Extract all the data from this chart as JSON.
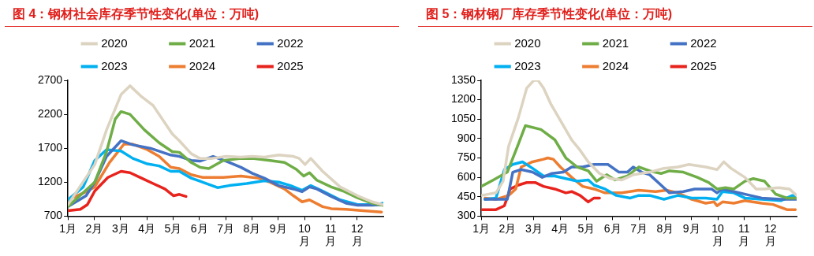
{
  "chart_data": [
    {
      "type": "line",
      "title": "图 4：钢材社会库存季节性变化(单位：万吨)",
      "xlim": [
        1,
        13
      ],
      "xticks": [
        {
          "value": 1,
          "label": "1月"
        },
        {
          "value": 2,
          "label": "2月"
        },
        {
          "value": 3,
          "label": "3月"
        },
        {
          "value": 4,
          "label": "4月"
        },
        {
          "value": 5,
          "label": "5月"
        },
        {
          "value": 6,
          "label": "6月"
        },
        {
          "value": 7,
          "label": "7月"
        },
        {
          "value": 8,
          "label": "8月"
        },
        {
          "value": 9,
          "label": "9月"
        },
        {
          "value": 10,
          "label": "10月"
        },
        {
          "value": 11,
          "label": "11月"
        },
        {
          "value": 12,
          "label": "12月"
        }
      ],
      "ylim": [
        700,
        2700
      ],
      "yticks": [
        700,
        1200,
        1700,
        2200,
        2700
      ],
      "grid": false,
      "legend": "top",
      "marker": "none",
      "line_style": "solid",
      "series": [
        {
          "name": "2020",
          "color": "#dcd3c0",
          "x": [
            1,
            2.02,
            2.47,
            3.02,
            3.36,
            3.8,
            4.24,
            4.97,
            5.24,
            5.69,
            6.02,
            6.47,
            7.02,
            7.58,
            8.02,
            8.47,
            9.02,
            9.58,
            9.8,
            10.02,
            10.24,
            10.69,
            11.36,
            12.02,
            12.58,
            12.97
          ],
          "values": [
            870,
            1460,
            1970,
            2490,
            2620,
            2460,
            2330,
            1910,
            1810,
            1620,
            1550,
            1550,
            1580,
            1570,
            1580,
            1570,
            1600,
            1580,
            1550,
            1460,
            1550,
            1360,
            1130,
            1000,
            910,
            870
          ]
        },
        {
          "name": "2021",
          "color": "#6fad47",
          "x": [
            1,
            2.02,
            2.47,
            2.8,
            3.02,
            3.36,
            3.91,
            4.47,
            4.97,
            5.24,
            5.69,
            6.02,
            6.36,
            6.91,
            7.58,
            8.02,
            8.69,
            9.24,
            9.69,
            9.97,
            10.19,
            10.47,
            11.02,
            11.47,
            12.02,
            12.58,
            12.97
          ],
          "values": [
            840,
            1200,
            1650,
            2130,
            2240,
            2200,
            1970,
            1780,
            1650,
            1640,
            1490,
            1420,
            1400,
            1520,
            1550,
            1550,
            1520,
            1490,
            1390,
            1290,
            1340,
            1230,
            1130,
            1070,
            970,
            890,
            860
          ]
        },
        {
          "name": "2022",
          "color": "#4472c4",
          "x": [
            1,
            1.69,
            2.02,
            2.47,
            3.02,
            3.47,
            4.13,
            4.91,
            5.24,
            5.69,
            6.02,
            6.52,
            7.02,
            7.58,
            8.02,
            8.47,
            9.02,
            9.58,
            9.91,
            10.19,
            10.47,
            11.02,
            11.58,
            12.02,
            12.58,
            12.97
          ],
          "values": [
            840,
            1000,
            1200,
            1580,
            1810,
            1750,
            1700,
            1600,
            1580,
            1520,
            1510,
            1580,
            1510,
            1420,
            1330,
            1260,
            1150,
            1100,
            1060,
            1130,
            1100,
            990,
            890,
            860,
            860,
            870
          ]
        },
        {
          "name": "2023",
          "color": "#00b0f0",
          "x": [
            1,
            1.58,
            2.02,
            2.47,
            3.02,
            3.47,
            4.02,
            4.47,
            4.91,
            5.24,
            5.69,
            6.13,
            6.69,
            7.13,
            7.8,
            8.47,
            9.02,
            9.47,
            9.91,
            10.24,
            10.69,
            11.36,
            12.02,
            12.69,
            13
          ],
          "values": [
            940,
            1130,
            1520,
            1680,
            1660,
            1550,
            1470,
            1440,
            1360,
            1360,
            1260,
            1200,
            1120,
            1150,
            1180,
            1220,
            1200,
            1150,
            1080,
            1150,
            1070,
            940,
            870,
            870,
            890
          ]
        },
        {
          "name": "2024",
          "color": "#ed7d31",
          "x": [
            1,
            1.58,
            2.02,
            2.58,
            3.13,
            3.47,
            4.02,
            4.47,
            4.91,
            5.24,
            5.69,
            6.13,
            6.91,
            7.58,
            8.24,
            8.69,
            9.24,
            9.58,
            9.91,
            10.19,
            10.69,
            11.02,
            11.58,
            12.24,
            12.93
          ],
          "values": [
            940,
            1040,
            1130,
            1490,
            1760,
            1760,
            1680,
            1580,
            1420,
            1400,
            1310,
            1270,
            1270,
            1290,
            1260,
            1200,
            1100,
            1000,
            910,
            940,
            840,
            810,
            800,
            780,
            760
          ]
        },
        {
          "name": "2025",
          "color": "#e8231d",
          "x": [
            1,
            1.47,
            1.74,
            2.02,
            2.52,
            3.02,
            3.36,
            3.8,
            4.24,
            4.69,
            5.02,
            5.24,
            5.49
          ],
          "values": [
            780,
            800,
            870,
            1070,
            1270,
            1360,
            1340,
            1260,
            1180,
            1100,
            1000,
            1020,
            990
          ]
        }
      ]
    },
    {
      "type": "line",
      "title": "图 5：钢材钢厂库存季节性变化(单位：万吨)",
      "xlim": [
        1,
        13
      ],
      "xticks": [
        {
          "value": 1,
          "label": "1月"
        },
        {
          "value": 2,
          "label": "2月"
        },
        {
          "value": 3,
          "label": "3月"
        },
        {
          "value": 4,
          "label": "4月"
        },
        {
          "value": 5,
          "label": "5月"
        },
        {
          "value": 6,
          "label": "6月"
        },
        {
          "value": 7,
          "label": "7月"
        },
        {
          "value": 8,
          "label": "8月"
        },
        {
          "value": 9,
          "label": "9月"
        },
        {
          "value": 10,
          "label": "10月"
        },
        {
          "value": 11,
          "label": "11月"
        },
        {
          "value": 12,
          "label": "12月"
        }
      ],
      "ylim": [
        300,
        1350
      ],
      "yticks": [
        300,
        450,
        600,
        750,
        900,
        1050,
        1200,
        1350
      ],
      "grid": false,
      "legend": "top",
      "marker": "none",
      "line_style": "solid",
      "series": [
        {
          "name": "2020",
          "color": "#dcd3c0",
          "x": [
            1,
            1.56,
            1.83,
            2.04,
            2.41,
            2.73,
            3,
            3.16,
            3.37,
            3.64,
            4.01,
            4.44,
            4.76,
            5.07,
            5.5,
            5.93,
            6.35,
            6.78,
            7.41,
            7.95,
            8.48,
            8.9,
            9.54,
            9.97,
            10.23,
            10.5,
            11.03,
            11.46,
            11.78,
            12.31,
            12.73,
            13
          ],
          "values": [
            460,
            480,
            570,
            840,
            1060,
            1290,
            1350,
            1350,
            1290,
            1170,
            1040,
            890,
            810,
            720,
            630,
            590,
            580,
            620,
            640,
            670,
            680,
            700,
            680,
            660,
            720,
            670,
            600,
            510,
            510,
            520,
            510,
            460
          ]
        },
        {
          "name": "2021",
          "color": "#6fad47",
          "x": [
            1,
            1.46,
            1.99,
            2.36,
            2.68,
            3.27,
            3.8,
            4.22,
            4.65,
            5.07,
            5.39,
            5.77,
            6.09,
            6.56,
            6.99,
            7.41,
            7.84,
            8.16,
            8.69,
            9.22,
            9.65,
            9.97,
            10.29,
            10.61,
            11.03,
            11.35,
            11.78,
            12.2,
            12.63,
            13
          ],
          "values": [
            530,
            580,
            640,
            830,
            1000,
            970,
            890,
            750,
            680,
            650,
            570,
            620,
            580,
            610,
            680,
            650,
            630,
            650,
            640,
            600,
            560,
            510,
            520,
            510,
            570,
            590,
            570,
            470,
            440,
            440
          ]
        },
        {
          "name": "2022",
          "color": "#4472c4",
          "x": [
            1.14,
            1.67,
            1.99,
            2.2,
            2.52,
            2.95,
            3.32,
            3.69,
            4.12,
            4.44,
            4.86,
            5.29,
            5.82,
            6.24,
            6.56,
            6.78,
            7.1,
            7.41,
            7.84,
            8.16,
            8.69,
            9.12,
            9.76,
            9.97,
            10.18,
            10.61,
            11.24,
            11.67,
            12.41,
            13
          ],
          "values": [
            430,
            430,
            430,
            640,
            660,
            640,
            600,
            630,
            640,
            680,
            680,
            700,
            700,
            640,
            640,
            680,
            640,
            620,
            540,
            480,
            490,
            510,
            510,
            480,
            510,
            490,
            460,
            440,
            430,
            430
          ]
        },
        {
          "name": "2023",
          "color": "#00b0f0",
          "x": [
            1.14,
            1.56,
            1.88,
            2.2,
            2.57,
            2.95,
            3.37,
            3.8,
            4.22,
            4.65,
            5.07,
            5.29,
            5.71,
            6.14,
            6.67,
            6.99,
            7.41,
            7.95,
            8.48,
            9.01,
            9.54,
            9.97,
            10.18,
            10.61,
            11.03,
            11.67,
            12.41,
            12.84,
            13
          ],
          "values": [
            430,
            440,
            660,
            700,
            720,
            670,
            610,
            610,
            590,
            570,
            580,
            540,
            510,
            460,
            440,
            460,
            460,
            430,
            460,
            440,
            440,
            430,
            490,
            480,
            440,
            430,
            420,
            460,
            450
          ]
        },
        {
          "name": "2024",
          "color": "#ed7d31",
          "x": [
            1.14,
            1.56,
            2.04,
            2.31,
            2.52,
            2.95,
            3.37,
            3.53,
            3.74,
            4.01,
            4.44,
            4.86,
            5.29,
            5.71,
            6.35,
            6.99,
            7.63,
            8.05,
            8.48,
            9.01,
            9.54,
            9.86,
            9.97,
            10.18,
            10.61,
            11.03,
            11.67,
            12.1,
            12.63,
            12.95
          ],
          "values": [
            440,
            430,
            460,
            510,
            680,
            720,
            740,
            750,
            740,
            680,
            600,
            530,
            510,
            480,
            480,
            500,
            490,
            500,
            480,
            430,
            400,
            410,
            380,
            410,
            400,
            420,
            400,
            390,
            350,
            350
          ]
        },
        {
          "name": "2025",
          "color": "#e8231d",
          "x": [
            1.03,
            1.56,
            1.88,
            2.1,
            2.41,
            2.73,
            3.05,
            3.37,
            3.8,
            4.22,
            4.44,
            4.76,
            5.07,
            5.29,
            5.5
          ],
          "values": [
            350,
            350,
            380,
            510,
            540,
            560,
            560,
            530,
            510,
            480,
            490,
            460,
            410,
            440,
            440
          ]
        }
      ]
    }
  ]
}
